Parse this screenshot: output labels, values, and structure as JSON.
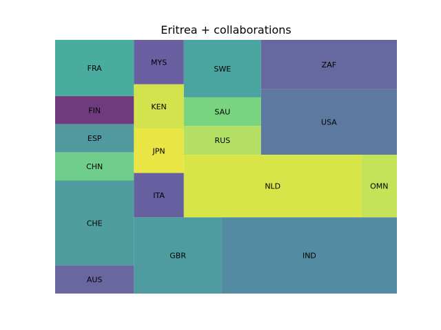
{
  "chart_data": {
    "type": "treemap",
    "title": "Eritrea + collaborations",
    "cells": [
      {
        "label": "FRA",
        "value": 9.2,
        "color": "#4aac9f"
      },
      {
        "label": "FIN",
        "value": 4.6,
        "color": "#6f3a7e"
      },
      {
        "label": "ESP",
        "value": 4.6,
        "color": "#52999f"
      },
      {
        "label": "CHN",
        "value": 4.6,
        "color": "#6fce8c"
      },
      {
        "label": "CHE",
        "value": 13.9,
        "color": "#4f9d9f"
      },
      {
        "label": "AUS",
        "value": 4.6,
        "color": "#6a67a0"
      },
      {
        "label": "MYS",
        "value": 4.6,
        "color": "#6a5fa0"
      },
      {
        "label": "KEN",
        "value": 4.6,
        "color": "#d2e34e"
      },
      {
        "label": "JPN",
        "value": 4.6,
        "color": "#e8e545"
      },
      {
        "label": "ITA",
        "value": 4.6,
        "color": "#6760a0"
      },
      {
        "label": "SWE",
        "value": 9.2,
        "color": "#4aa49f"
      },
      {
        "label": "SAU",
        "value": 4.6,
        "color": "#78d47f"
      },
      {
        "label": "RUS",
        "value": 4.6,
        "color": "#b4e063"
      },
      {
        "label": "GBR",
        "value": 13.9,
        "color": "#4e9c9f"
      },
      {
        "label": "ZAF",
        "value": 13.9,
        "color": "#6868a0"
      },
      {
        "label": "USA",
        "value": 18.5,
        "color": "#5d79a0"
      },
      {
        "label": "NLD",
        "value": 23.1,
        "color": "#d8e548"
      },
      {
        "label": "OMN",
        "value": 4.6,
        "color": "#c4e358"
      },
      {
        "label": "IND",
        "value": 27.7,
        "color": "#528ba2"
      }
    ]
  }
}
